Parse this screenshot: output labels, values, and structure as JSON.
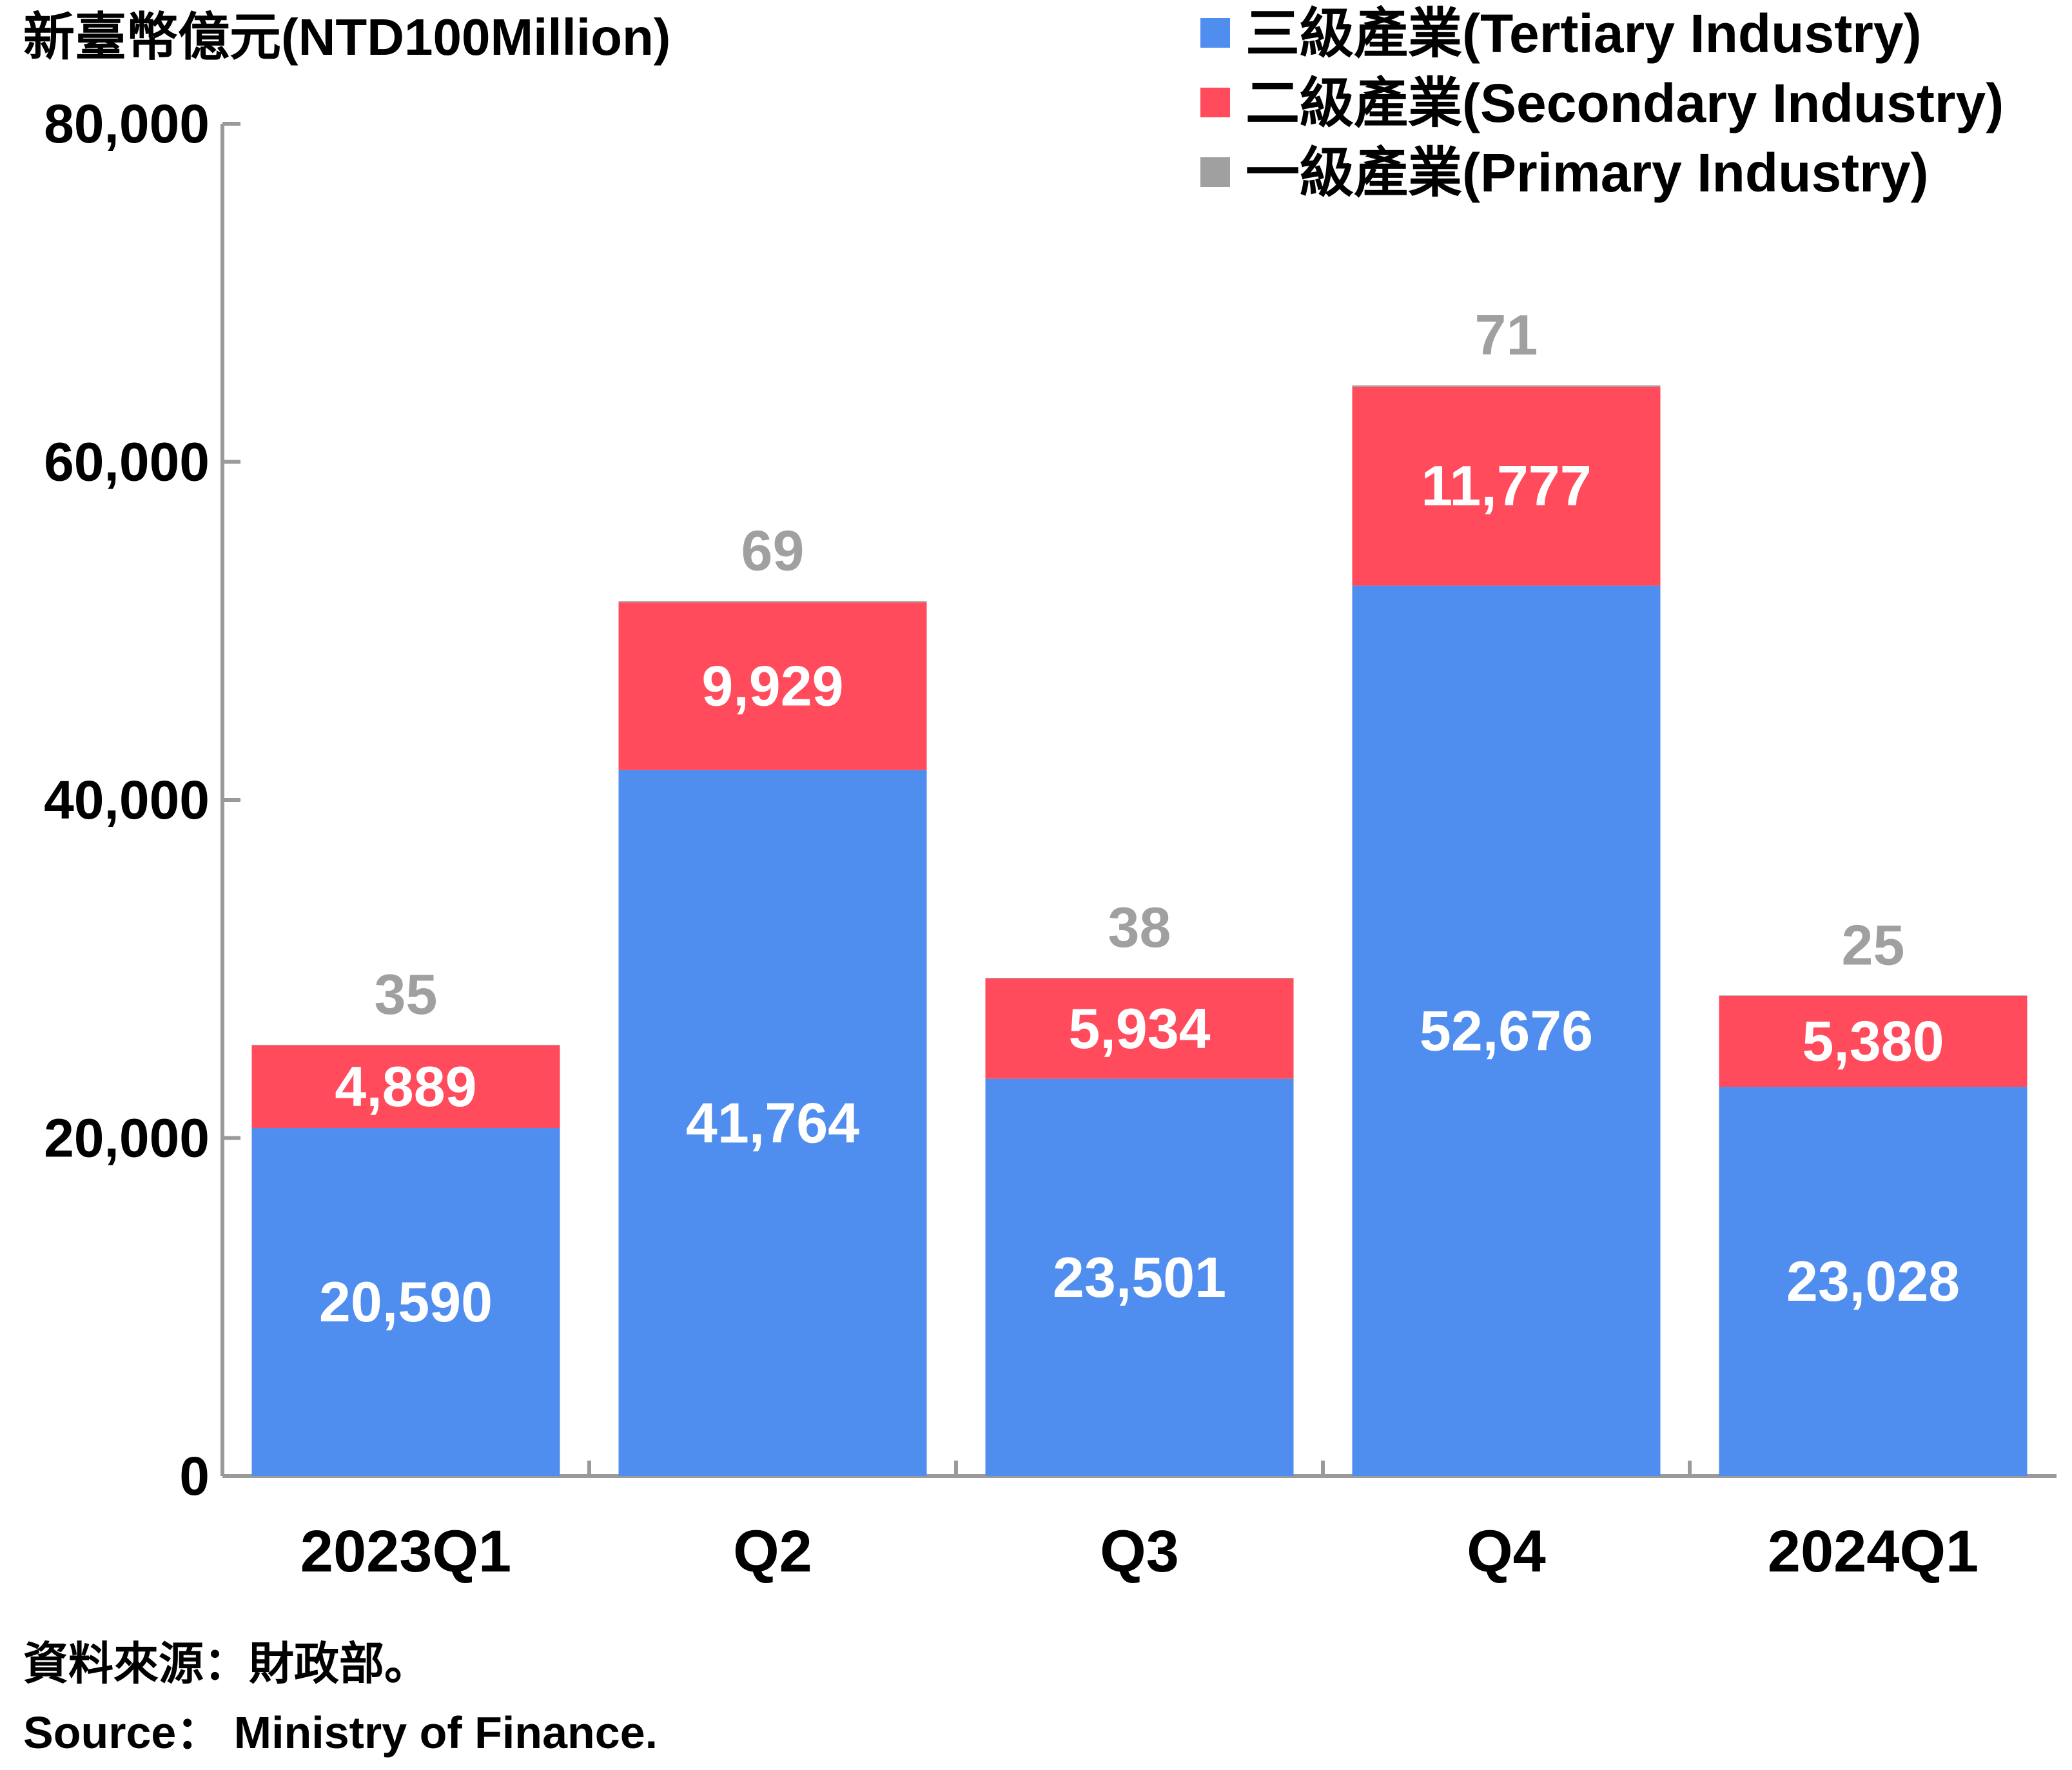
{
  "chart_data": {
    "type": "bar",
    "stacked": true,
    "ylabel": "新臺幣億元(NTD100Million)",
    "ylim": [
      0,
      80000
    ],
    "yticks": [
      0,
      20000,
      40000,
      60000,
      80000
    ],
    "ytick_labels": [
      "0",
      "20,000",
      "40,000",
      "60,000",
      "80,000"
    ],
    "categories": [
      "2023Q1",
      "Q2",
      "Q3",
      "Q4",
      "2024Q1"
    ],
    "series": [
      {
        "name": "一級產業(Primary Industry)",
        "color": "#a0a0a0",
        "values": [
          35,
          69,
          38,
          71,
          25
        ],
        "labels": [
          "35",
          "69",
          "38",
          "71",
          "25"
        ]
      },
      {
        "name": "二級產業(Secondary Industry)",
        "color": "#ff4b5c",
        "values": [
          4889,
          9929,
          5934,
          11777,
          5380
        ],
        "labels": [
          "4,889",
          "9,929",
          "5,934",
          "11,777",
          "5,380"
        ]
      },
      {
        "name": "三級產業(Tertiary Industry)",
        "color": "#4f8def",
        "values": [
          20590,
          41764,
          23501,
          52676,
          23028
        ],
        "labels": [
          "20,590",
          "41,764",
          "23,501",
          "52,676",
          "23,028"
        ]
      }
    ],
    "legend_order": [
      2,
      1,
      0
    ],
    "legend_position": "top-right",
    "grid": false
  },
  "source": {
    "zh": "資料來源：財政部。",
    "en": "Source： Ministry of Finance."
  }
}
